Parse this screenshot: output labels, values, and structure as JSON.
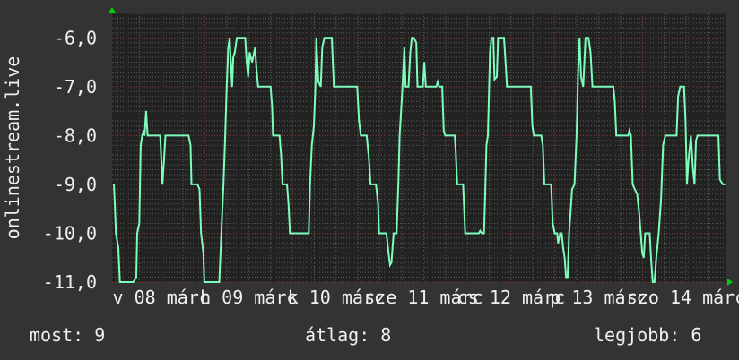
{
  "chart_data": {
    "type": "line",
    "title": "",
    "ylabel": "onlinestream.live",
    "xlabel": "",
    "xlim": [
      "03-07 22:32",
      "03-14 23:04"
    ],
    "ylim": [
      -11.0,
      -5.5
    ],
    "grid": true,
    "y_ticks": [
      -6,
      -7,
      -8,
      -9,
      -10,
      -11
    ],
    "y_tick_labels": [
      "-6,0",
      "-7,0",
      "-8,0",
      "-9,0",
      "-10,0",
      "-11,0"
    ],
    "x_tick_labels": [
      {
        "at": "03-08 12:00",
        "label": "v 08 márc"
      },
      {
        "at": "03-09 12:00",
        "label": "h 09 márc"
      },
      {
        "at": "03-10 12:00",
        "label": "k 10 márc"
      },
      {
        "at": "03-11 12:00",
        "label": "sze 11 márc"
      },
      {
        "at": "03-12 12:00",
        "label": "cs 12 márc"
      },
      {
        "at": "03-13 12:00",
        "label": "p 13 márc"
      },
      {
        "at": "03-14 12:00",
        "label": "szo 14 márc"
      }
    ],
    "colors": {
      "line": "#7dfcbc",
      "background": "#333333",
      "plot_background": "#222222",
      "grid_major": "#8a3c3c",
      "grid_minor": "#5a5a5a",
      "arrow": "#00d000"
    },
    "series": [
      {
        "points": [
          [
            "03-07 23:01",
            -9
          ],
          [
            "03-07 23:16",
            -9.4
          ],
          [
            "03-07 23:35",
            -10
          ],
          [
            "03-08 00:15",
            -10.3
          ],
          [
            "03-08 00:40",
            -11
          ],
          [
            "03-08 04:20",
            -11
          ],
          [
            "03-08 05:10",
            -10.9
          ],
          [
            "03-08 05:25",
            -10
          ],
          [
            "03-08 05:59",
            -9.8
          ],
          [
            "03-08 06:23",
            -8.2
          ],
          [
            "03-08 06:48",
            -8
          ],
          [
            "03-08 07:13",
            -7.9
          ],
          [
            "03-08 07:27",
            -8
          ],
          [
            "03-08 07:52",
            -7.5
          ],
          [
            "03-08 08:16",
            -8
          ],
          [
            "03-08 11:43",
            -8
          ],
          [
            "03-08 12:22",
            -9
          ],
          [
            "03-08 12:47",
            -8.5
          ],
          [
            "03-08 13:11",
            -8
          ],
          [
            "03-08 19:29",
            -8
          ],
          [
            "03-08 20:04",
            -8.2
          ],
          [
            "03-08 20:19",
            -9
          ],
          [
            "03-08 21:57",
            -9
          ],
          [
            "03-08 22:31",
            -9.1
          ],
          [
            "03-08 22:56",
            -10
          ],
          [
            "03-08 23:35",
            -10.4
          ],
          [
            "03-08 23:50",
            -11
          ],
          [
            "03-09 03:56",
            -11
          ],
          [
            "03-09 04:30",
            -10
          ],
          [
            "03-09 05:05",
            -9
          ],
          [
            "03-09 05:34",
            -8
          ],
          [
            "03-09 05:59",
            -7
          ],
          [
            "03-09 06:23",
            -6.2
          ],
          [
            "03-09 06:48",
            -6
          ],
          [
            "03-09 07:07",
            -6.5
          ],
          [
            "03-09 07:27",
            -7
          ],
          [
            "03-09 07:47",
            -6.4
          ],
          [
            "03-09 08:11",
            -6.3
          ],
          [
            "03-09 08:46",
            -6
          ],
          [
            "03-09 11:03",
            -6
          ],
          [
            "03-09 11:28",
            -6.5
          ],
          [
            "03-09 11:52",
            -6.8
          ],
          [
            "03-09 12:17",
            -6.3
          ],
          [
            "03-09 12:56",
            -6.5
          ],
          [
            "03-09 13:46",
            -6.2
          ],
          [
            "03-09 14:05",
            -6.6
          ],
          [
            "03-09 14:35",
            -7
          ],
          [
            "03-09 18:01",
            -7
          ],
          [
            "03-09 18:26",
            -7.4
          ],
          [
            "03-09 18:40",
            -8
          ],
          [
            "03-09 20:28",
            -8
          ],
          [
            "03-09 20:53",
            -8.4
          ],
          [
            "03-09 21:17",
            -9
          ],
          [
            "03-09 22:31",
            -9
          ],
          [
            "03-09 22:56",
            -9.4
          ],
          [
            "03-09 23:20",
            -10
          ],
          [
            "03-10 04:30",
            -10
          ],
          [
            "03-10 04:50",
            -9
          ],
          [
            "03-10 05:19",
            -8.2
          ],
          [
            "03-10 05:53",
            -7.8
          ],
          [
            "03-10 06:18",
            -7
          ],
          [
            "03-10 06:33",
            -6
          ],
          [
            "03-10 07:07",
            -6.9
          ],
          [
            "03-10 07:47",
            -7
          ],
          [
            "03-10 08:11",
            -6.2
          ],
          [
            "03-10 08:46",
            -6
          ],
          [
            "03-10 10:49",
            -6
          ],
          [
            "03-10 11:23",
            -7
          ],
          [
            "03-10 17:46",
            -7
          ],
          [
            "03-10 18:16",
            -7.7
          ],
          [
            "03-10 18:45",
            -8
          ],
          [
            "03-10 20:23",
            -8
          ],
          [
            "03-10 21:02",
            -8.5
          ],
          [
            "03-10 21:27",
            -9
          ],
          [
            "03-10 22:55",
            -9
          ],
          [
            "03-10 23:30",
            -9.4
          ],
          [
            "03-10 23:45",
            -10
          ],
          [
            "03-11 01:47",
            -10
          ],
          [
            "03-11 02:22",
            -10.4
          ],
          [
            "03-11 02:47",
            -10.65
          ],
          [
            "03-11 03:11",
            -10.6
          ],
          [
            "03-11 03:46",
            -10
          ],
          [
            "03-11 04:35",
            -10
          ],
          [
            "03-11 05:04",
            -9
          ],
          [
            "03-11 05:24",
            -8
          ],
          [
            "03-11 06:03",
            -7.2
          ],
          [
            "03-11 06:43",
            -6.2
          ],
          [
            "03-11 07:02",
            -7
          ],
          [
            "03-11 07:51",
            -7
          ],
          [
            "03-11 08:21",
            -6.3
          ],
          [
            "03-11 08:46",
            -6
          ],
          [
            "03-11 09:19",
            -6
          ],
          [
            "03-11 09:59",
            -6.1
          ],
          [
            "03-11 10:18",
            -7
          ],
          [
            "03-11 11:47",
            -7
          ],
          [
            "03-11 12:11",
            -6.5
          ],
          [
            "03-11 12:36",
            -7
          ],
          [
            "03-11 15:28",
            -7
          ],
          [
            "03-11 15:52",
            -6.9
          ],
          [
            "03-11 16:17",
            -7
          ],
          [
            "03-11 17:06",
            -7
          ],
          [
            "03-11 17:31",
            -7.9
          ],
          [
            "03-11 17:55",
            -8
          ],
          [
            "03-11 20:32",
            -8
          ],
          [
            "03-11 20:47",
            -8.3
          ],
          [
            "03-11 21:12",
            -9
          ],
          [
            "03-11 22:50",
            -9
          ],
          [
            "03-11 23:24",
            -10
          ],
          [
            "03-12 03:10",
            -10
          ],
          [
            "03-12 03:30",
            -9.95
          ],
          [
            "03-12 03:59",
            -10
          ],
          [
            "03-12 04:34",
            -10
          ],
          [
            "03-12 04:49",
            -9.4
          ],
          [
            "03-12 05:13",
            -8.2
          ],
          [
            "03-12 05:38",
            -8
          ],
          [
            "03-12 05:58",
            -7
          ],
          [
            "03-12 06:12",
            -6.3
          ],
          [
            "03-12 06:37",
            -6
          ],
          [
            "03-12 07:07",
            -6
          ],
          [
            "03-12 07:26",
            -6.85
          ],
          [
            "03-12 08:05",
            -6.8
          ],
          [
            "03-12 08:25",
            -6
          ],
          [
            "03-12 10:03",
            -6
          ],
          [
            "03-12 10:23",
            -6.4
          ],
          [
            "03-12 10:52",
            -7
          ],
          [
            "03-12 17:25",
            -7
          ],
          [
            "03-12 17:50",
            -7.8
          ],
          [
            "03-12 18:14",
            -8
          ],
          [
            "03-12 20:17",
            -8
          ],
          [
            "03-12 20:42",
            -8.2
          ],
          [
            "03-12 21:07",
            -9
          ],
          [
            "03-12 22:59",
            -9
          ],
          [
            "03-12 23:24",
            -9.8
          ],
          [
            "03-12 23:59",
            -10
          ],
          [
            "03-13 00:38",
            -10
          ],
          [
            "03-13 00:53",
            -10.2
          ],
          [
            "03-13 01:27",
            -10
          ],
          [
            "03-13 01:52",
            -10
          ],
          [
            "03-13 02:16",
            -10.3
          ],
          [
            "03-13 02:41",
            -10.5
          ],
          [
            "03-13 03:05",
            -10.9
          ],
          [
            "03-13 03:30",
            -10.9
          ],
          [
            "03-13 03:55",
            -10
          ],
          [
            "03-13 04:44",
            -9.1
          ],
          [
            "03-13 05:23",
            -9
          ],
          [
            "03-13 05:58",
            -8
          ],
          [
            "03-13 06:22",
            -6.7
          ],
          [
            "03-13 06:46",
            -6
          ],
          [
            "03-13 07:11",
            -6.8
          ],
          [
            "03-13 07:46",
            -7
          ],
          [
            "03-13 08:25",
            -6
          ],
          [
            "03-13 09:14",
            -6
          ],
          [
            "03-13 09:48",
            -6.3
          ],
          [
            "03-13 10:18",
            -7
          ],
          [
            "03-13 16:02",
            -7
          ],
          [
            "03-13 16:26",
            -7.3
          ],
          [
            "03-13 16:51",
            -8
          ],
          [
            "03-13 20:07",
            -8
          ],
          [
            "03-13 20:27",
            -7.9
          ],
          [
            "03-13 20:52",
            -8
          ],
          [
            "03-13 21:21",
            -9
          ],
          [
            "03-13 21:55",
            -9.1
          ],
          [
            "03-13 22:35",
            -9.2
          ],
          [
            "03-13 23:09",
            -9.6
          ],
          [
            "03-13 23:58",
            -10.4
          ],
          [
            "03-14 00:23",
            -10.5
          ],
          [
            "03-14 00:47",
            -10
          ],
          [
            "03-14 02:01",
            -10
          ],
          [
            "03-14 02:26",
            -10.55
          ],
          [
            "03-14 02:50",
            -11
          ],
          [
            "03-14 03:20",
            -11
          ],
          [
            "03-14 03:49",
            -10.5
          ],
          [
            "03-14 04:29",
            -10
          ],
          [
            "03-14 05:08",
            -9.3
          ],
          [
            "03-14 05:42",
            -8.2
          ],
          [
            "03-14 06:17",
            -8
          ],
          [
            "03-14 09:23",
            -8
          ],
          [
            "03-14 09:48",
            -7.2
          ],
          [
            "03-14 10:22",
            -7
          ],
          [
            "03-14 11:26",
            -7
          ],
          [
            "03-14 11:51",
            -7.7
          ],
          [
            "03-14 12:15",
            -9
          ],
          [
            "03-14 12:40",
            -8.5
          ],
          [
            "03-14 13:19",
            -8
          ],
          [
            "03-14 13:54",
            -8.7
          ],
          [
            "03-14 14:18",
            -9
          ],
          [
            "03-14 14:43",
            -8.1
          ],
          [
            "03-14 15:08",
            -8
          ],
          [
            "03-14 20:52",
            -8
          ],
          [
            "03-14 21:16",
            -8.9
          ],
          [
            "03-14 22:05",
            -9
          ],
          [
            "03-14 22:44",
            -9
          ]
        ]
      }
    ]
  },
  "legend": {
    "current": "most: 9",
    "average": "átlag: 8",
    "best": "legjobb: 6"
  }
}
